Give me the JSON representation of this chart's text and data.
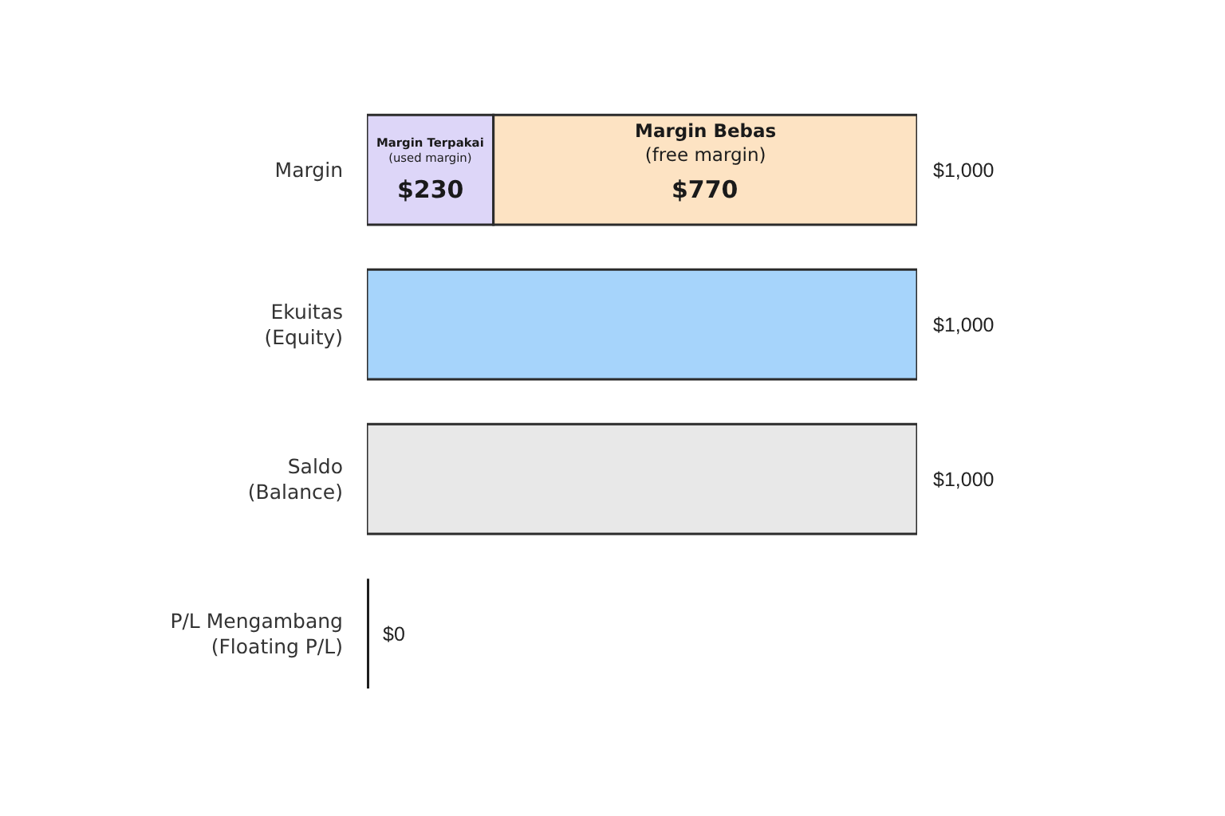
{
  "chart_data": {
    "type": "bar",
    "orientation": "horizontal",
    "stacked": true,
    "categories": [
      "Margin",
      "Ekuitas\n(Equity)",
      "Saldo\n(Balance)",
      "P/L Mengambang\n(Floating P/L)"
    ],
    "series": [
      {
        "name": "Margin Terpakai\n(used margin)",
        "color": "#ddd6f8",
        "values": [
          230,
          null,
          null,
          null
        ],
        "value_labels": [
          "$230",
          null,
          null,
          null
        ]
      },
      {
        "name": "Margin Bebas\n(free margin)",
        "color": "#fde3c3",
        "values": [
          770,
          null,
          null,
          null
        ],
        "value_labels": [
          "$770",
          null,
          null,
          null
        ]
      },
      {
        "colors": [
          null,
          "#a6d4fb",
          "#e8e8e8",
          "#1e1e1e"
        ],
        "values": [
          null,
          1000,
          1000,
          0
        ]
      }
    ],
    "totals": [
      "$1,000",
      "$1,000",
      "$1,000",
      "$0"
    ]
  }
}
